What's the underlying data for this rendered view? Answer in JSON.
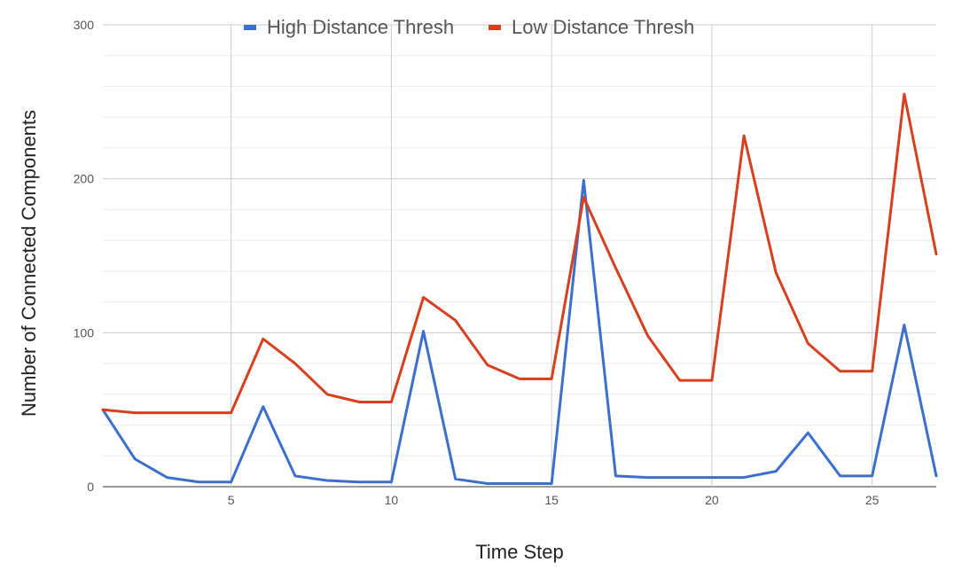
{
  "chart_data": {
    "type": "line",
    "title": "",
    "xlabel": "Time Step",
    "ylabel": "Number of Connected Components",
    "x": [
      1,
      2,
      3,
      4,
      5,
      6,
      7,
      8,
      9,
      10,
      11,
      12,
      13,
      14,
      15,
      16,
      17,
      18,
      19,
      20,
      21,
      22,
      23,
      24,
      25,
      26,
      27
    ],
    "xlim": [
      1,
      27
    ],
    "ylim": [
      0,
      300
    ],
    "x_ticks": [
      5,
      10,
      15,
      20,
      25
    ],
    "y_ticks": [
      0,
      100,
      200,
      300
    ],
    "grid": true,
    "legend_position": "top",
    "series": [
      {
        "name": "High Distance Thresh",
        "color": "#3c6fcd",
        "values": [
          50,
          18,
          6,
          3,
          3,
          52,
          7,
          4,
          3,
          3,
          101,
          5,
          2,
          2,
          2,
          199,
          7,
          6,
          6,
          6,
          6,
          10,
          35,
          7,
          7,
          105,
          7
        ]
      },
      {
        "name": "Low Distance Thresh",
        "color": "#d83f1f",
        "values": [
          50,
          48,
          48,
          48,
          48,
          96,
          80,
          60,
          55,
          55,
          123,
          108,
          79,
          70,
          70,
          188,
          142,
          98,
          69,
          69,
          228,
          139,
          93,
          75,
          75,
          255,
          151
        ]
      }
    ]
  }
}
